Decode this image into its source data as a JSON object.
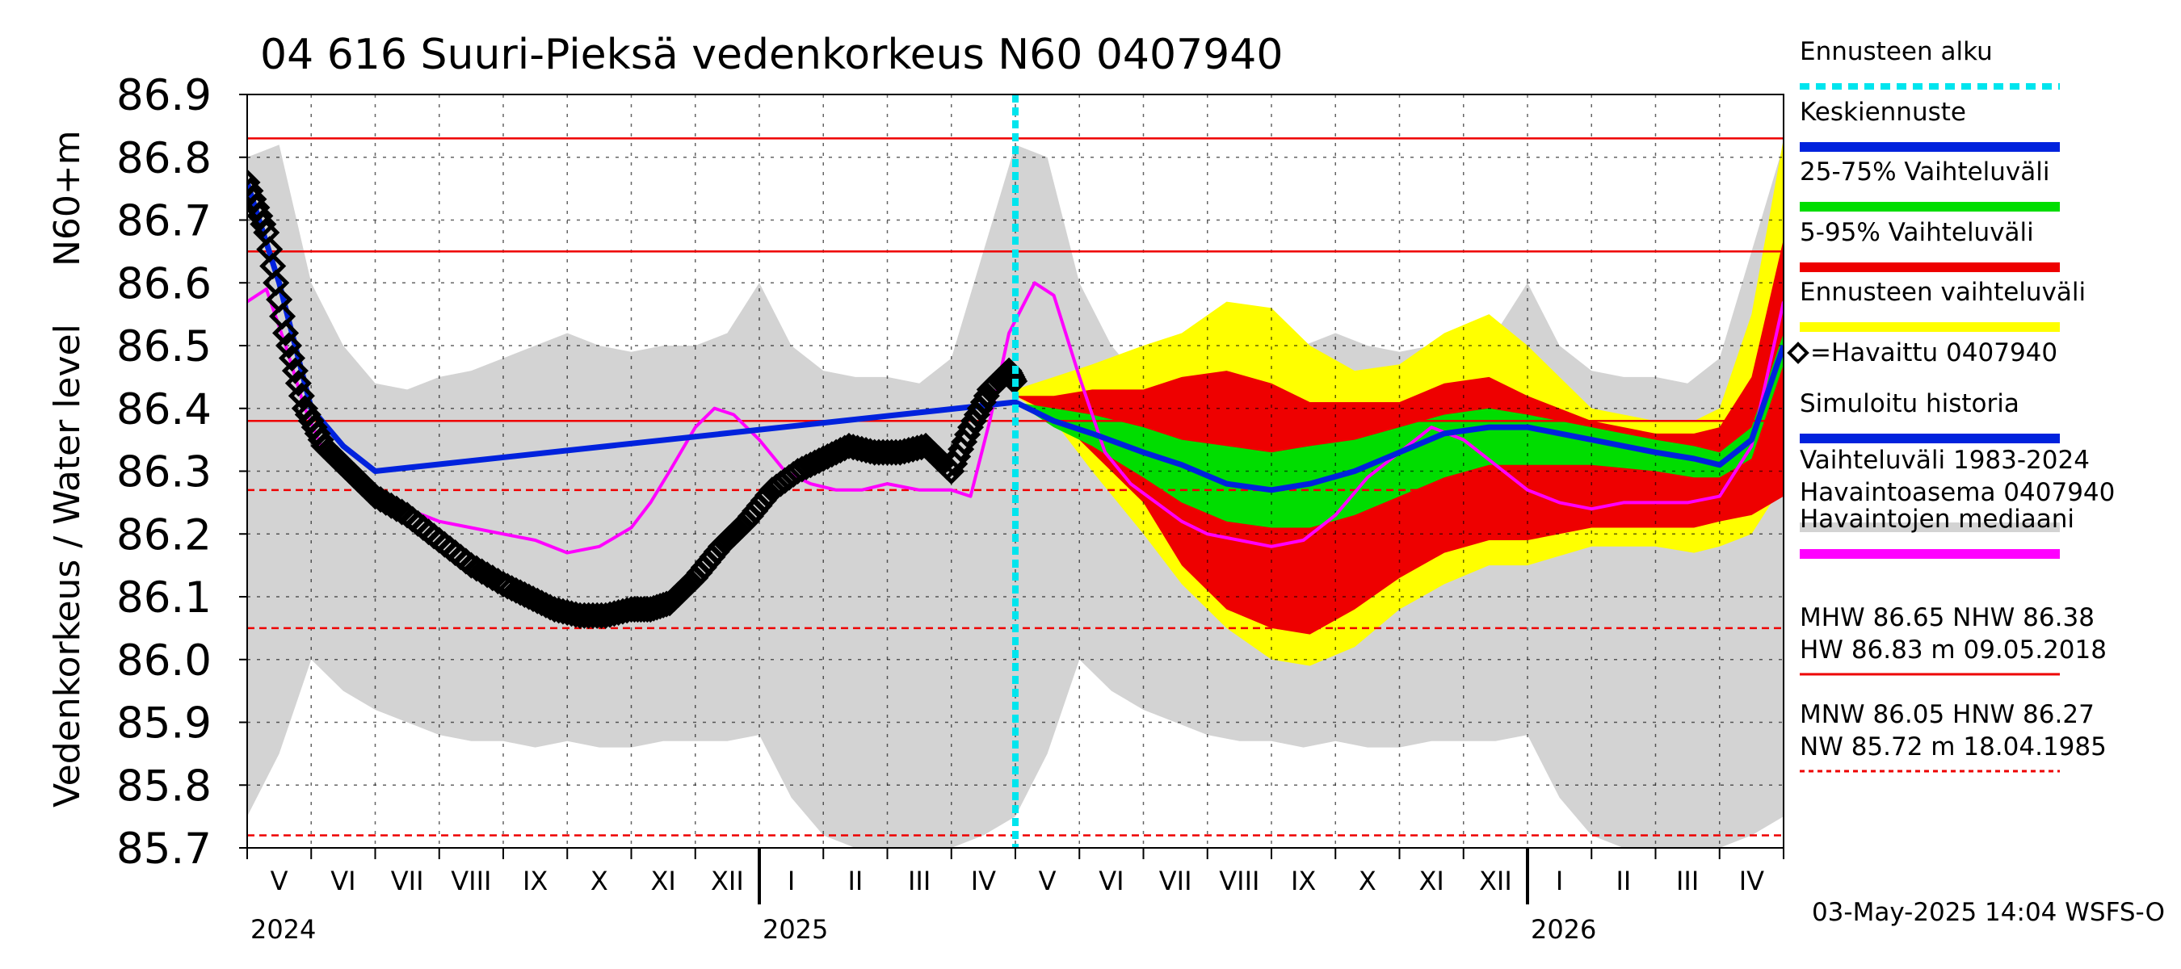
{
  "chart_data": {
    "type": "line",
    "title": "04 616 Suuri-Pieksä vedenkorkeus N60 0407940",
    "ylabel": "Vedenkorkeus / Water level",
    "ylabel_unit": "N60+m",
    "ylim": [
      85.7,
      86.9
    ],
    "y_ticks": [
      "86.9",
      "86.8",
      "86.7",
      "86.6",
      "86.5",
      "86.4",
      "86.3",
      "86.2",
      "86.1",
      "86.0",
      "85.9",
      "85.8",
      "85.7"
    ],
    "x_months": [
      "V",
      "VI",
      "VII",
      "VIII",
      "IX",
      "X",
      "XI",
      "XII",
      "I",
      "II",
      "III",
      "IV",
      "V",
      "VI",
      "VII",
      "VIII",
      "IX",
      "X",
      "XI",
      "XII",
      "I",
      "II",
      "III",
      "IV"
    ],
    "x_years": [
      "2024",
      "2025",
      "2026"
    ],
    "forecast_start_month_index": 12,
    "reference_lines": [
      {
        "name": "HW",
        "value": 86.83,
        "style": "solid"
      },
      {
        "name": "MHW",
        "value": 86.65,
        "style": "solid"
      },
      {
        "name": "NHW",
        "value": 86.38,
        "style": "solid"
      },
      {
        "name": "HNW",
        "value": 86.27,
        "style": "dashed"
      },
      {
        "name": "MNW",
        "value": 86.05,
        "style": "dashed"
      },
      {
        "name": "NW",
        "value": 85.72,
        "style": "dashed"
      }
    ],
    "series": [
      {
        "name": "Havaittu 0407940",
        "x": [
          0,
          0.3,
          0.6,
          0.9,
          1.2,
          1.6,
          2,
          2.5,
          3,
          3.5,
          4,
          4.4,
          4.8,
          5.2,
          5.6,
          6,
          6.3,
          6.6,
          7,
          7.4,
          7.8,
          8.2,
          8.6,
          9,
          9.4,
          9.8,
          10.2,
          10.6,
          11,
          11.3,
          11.6,
          11.9,
          12
        ],
        "values": [
          86.76,
          86.68,
          86.52,
          86.4,
          86.34,
          86.3,
          86.26,
          86.23,
          86.19,
          86.15,
          86.12,
          86.1,
          86.08,
          86.07,
          86.07,
          86.08,
          86.08,
          86.09,
          86.13,
          86.18,
          86.22,
          86.27,
          86.3,
          86.32,
          86.34,
          86.33,
          86.33,
          86.34,
          86.3,
          86.37,
          86.43,
          86.46,
          86.44
        ]
      },
      {
        "name": "Havaintojen mediaani",
        "x": [
          0,
          0.3,
          0.6,
          0.9,
          1.2,
          1.6,
          2,
          2.5,
          3,
          3.5,
          4,
          4.5,
          5,
          5.5,
          6,
          6.3,
          6.6,
          7,
          7.3,
          7.6,
          8,
          8.4,
          8.8,
          9.2,
          9.6,
          10,
          10.5,
          11,
          11.3,
          11.6,
          11.9,
          12.3,
          12.6,
          13,
          13.4,
          13.8,
          14.2,
          14.6,
          15,
          15.5,
          16,
          16.5,
          17,
          17.5,
          18,
          18.5,
          19,
          19.5,
          20,
          20.5,
          21,
          21.5,
          22,
          22.5,
          23,
          23.5,
          24
        ],
        "values": [
          86.57,
          86.59,
          86.5,
          86.4,
          86.33,
          86.3,
          86.27,
          86.24,
          86.22,
          86.21,
          86.2,
          86.19,
          86.17,
          86.18,
          86.21,
          86.25,
          86.3,
          86.37,
          86.4,
          86.39,
          86.35,
          86.3,
          86.28,
          86.27,
          86.27,
          86.28,
          86.27,
          86.27,
          86.26,
          86.38,
          86.52,
          86.6,
          86.58,
          86.45,
          86.33,
          86.28,
          86.25,
          86.22,
          86.2,
          86.19,
          86.18,
          86.19,
          86.23,
          86.29,
          86.33,
          86.37,
          86.35,
          86.31,
          86.27,
          86.25,
          86.24,
          86.25,
          86.25,
          86.25,
          86.26,
          86.34,
          86.57
        ]
      },
      {
        "name": "Keskiennuste",
        "x": [
          0,
          0.5,
          1,
          1.5,
          2,
          12,
          12.6,
          13.2,
          14,
          14.6,
          15.3,
          16,
          16.6,
          17.3,
          18,
          18.7,
          19.4,
          20,
          21,
          22,
          22.6,
          23,
          23.5,
          24
        ],
        "values": [
          86.76,
          86.6,
          86.4,
          86.34,
          86.3,
          86.41,
          86.38,
          86.36,
          86.33,
          86.31,
          86.28,
          86.27,
          86.28,
          86.3,
          86.33,
          86.36,
          86.37,
          86.37,
          86.35,
          86.33,
          86.32,
          86.31,
          86.35,
          86.5
        ]
      }
    ],
    "bands": [
      {
        "name": "Vaihteluväli 1983-2024 Havaintoasema 0407940",
        "x": [
          0,
          0.5,
          1,
          1.5,
          2,
          2.5,
          3,
          3.5,
          4,
          4.5,
          5,
          5.5,
          6,
          6.5,
          7,
          7.5,
          8,
          8.5,
          9,
          9.5,
          10,
          10.5,
          11,
          11.5,
          12,
          12.5,
          13,
          13.5,
          14,
          14.5,
          15,
          15.5,
          16,
          16.5,
          17,
          17.5,
          18,
          18.5,
          19,
          19.5,
          20,
          20.5,
          21,
          21.5,
          22,
          22.5,
          23,
          23.5,
          24
        ],
        "upper": [
          86.8,
          86.82,
          86.6,
          86.5,
          86.44,
          86.43,
          86.45,
          86.46,
          86.48,
          86.5,
          86.52,
          86.5,
          86.49,
          86.5,
          86.5,
          86.52,
          86.6,
          86.5,
          86.46,
          86.45,
          86.45,
          86.44,
          86.48,
          86.65,
          86.82,
          86.8,
          86.6,
          86.5,
          86.44,
          86.43,
          86.45,
          86.46,
          86.48,
          86.5,
          86.52,
          86.5,
          86.49,
          86.5,
          86.5,
          86.52,
          86.6,
          86.5,
          86.46,
          86.45,
          86.45,
          86.44,
          86.48,
          86.65,
          86.82
        ],
        "lower": [
          85.75,
          85.85,
          86.0,
          85.95,
          85.92,
          85.9,
          85.88,
          85.87,
          85.87,
          85.86,
          85.87,
          85.86,
          85.86,
          85.87,
          85.87,
          85.87,
          85.88,
          85.78,
          85.72,
          85.7,
          85.7,
          85.7,
          85.7,
          85.72,
          85.75,
          85.85,
          86.0,
          85.95,
          85.92,
          85.9,
          85.88,
          85.87,
          85.87,
          85.86,
          85.87,
          85.86,
          85.86,
          85.87,
          85.87,
          85.87,
          85.88,
          85.78,
          85.72,
          85.7,
          85.7,
          85.7,
          85.7,
          85.72,
          85.75
        ]
      },
      {
        "name": "Ennusteen vaihteluväli",
        "x": [
          12,
          12.6,
          13.2,
          14,
          14.6,
          15.3,
          16,
          16.6,
          17.3,
          18,
          18.7,
          19.4,
          20,
          21,
          22,
          22.6,
          23,
          23.5,
          24
        ],
        "upper": [
          86.43,
          86.45,
          86.47,
          86.5,
          86.52,
          86.57,
          86.56,
          86.5,
          86.46,
          86.47,
          86.52,
          86.55,
          86.5,
          86.4,
          86.38,
          86.38,
          86.4,
          86.55,
          86.83
        ],
        "lower": [
          86.42,
          86.38,
          86.3,
          86.2,
          86.12,
          86.05,
          86.0,
          85.99,
          86.02,
          86.08,
          86.12,
          86.15,
          86.15,
          86.18,
          86.18,
          86.17,
          86.18,
          86.2,
          86.28
        ]
      },
      {
        "name": "5-95% Vaihteluväli",
        "x": [
          12,
          12.6,
          13.2,
          14,
          14.6,
          15.3,
          16,
          16.6,
          17.3,
          18,
          18.7,
          19.4,
          20,
          21,
          22,
          22.6,
          23,
          23.5,
          24
        ],
        "upper": [
          86.42,
          86.42,
          86.43,
          86.43,
          86.45,
          86.46,
          86.44,
          86.41,
          86.41,
          86.41,
          86.44,
          86.45,
          86.42,
          86.38,
          86.36,
          86.36,
          86.37,
          86.45,
          86.67
        ],
        "lower": [
          86.42,
          86.39,
          86.33,
          86.25,
          86.15,
          86.08,
          86.05,
          86.04,
          86.08,
          86.13,
          86.17,
          86.19,
          86.19,
          86.21,
          86.21,
          86.21,
          86.22,
          86.23,
          86.26
        ]
      },
      {
        "name": "25-75% Vaihteluväli",
        "x": [
          12,
          12.6,
          13.2,
          14,
          14.6,
          15.3,
          16,
          16.6,
          17.3,
          18,
          18.7,
          19.4,
          20,
          21,
          22,
          22.6,
          23,
          23.5,
          24
        ],
        "upper": [
          86.41,
          86.4,
          86.39,
          86.37,
          86.35,
          86.34,
          86.33,
          86.34,
          86.35,
          86.37,
          86.39,
          86.4,
          86.39,
          86.37,
          86.35,
          86.34,
          86.33,
          86.37,
          86.52
        ],
        "lower": [
          86.41,
          86.37,
          86.34,
          86.29,
          86.25,
          86.22,
          86.21,
          86.21,
          86.23,
          86.26,
          86.29,
          86.31,
          86.31,
          86.31,
          86.3,
          86.29,
          86.29,
          86.32,
          86.47
        ]
      }
    ],
    "legend": {
      "placement": "right",
      "entries": [
        {
          "label": "Ennusteen alku",
          "color": "#00e5ee",
          "style": "dashed"
        },
        {
          "label": "Keskiennuste",
          "color": "#0022dd",
          "style": "solid"
        },
        {
          "label": "25-75% Vaihteluväli",
          "color": "#00dd00",
          "style": "solid"
        },
        {
          "label": "5-95% Vaihteluväli",
          "color": "#ee0000",
          "style": "solid"
        },
        {
          "label": "Ennusteen vaihteluväli",
          "color": "#ffff00",
          "style": "solid"
        },
        {
          "label": "=Havaittu 0407940",
          "color": "#000000",
          "style": "marker"
        },
        {
          "label": "Simuloitu historia",
          "color": "#0022dd",
          "style": "solid"
        },
        {
          "label": "Vaihteluväli 1983-2024",
          "label2": " Havaintoasema 0407940",
          "color": "#d3d3d3",
          "style": "solid"
        },
        {
          "label": "Havaintojen mediaani",
          "color": "#ff00ff",
          "style": "solid"
        }
      ],
      "stats": [
        {
          "line1": "MHW  86.65 NHW  86.38",
          "line2": "HW  86.83 m 09.05.2018",
          "color": "#ee0000",
          "style": "solid"
        },
        {
          "line1": "MNW  86.05 HNW  86.27",
          "line2": "NW  85.72 m 18.04.1985",
          "color": "#ee0000",
          "style": "dashed"
        }
      ]
    },
    "footer": "03-May-2025 14:04 WSFS-O"
  },
  "colors": {
    "history_band": "#d3d3d3",
    "forecast_range": "#ffff00",
    "p5_95": "#ee0000",
    "p25_75": "#00dd00",
    "mean_forecast": "#0022dd",
    "median": "#ff00ff",
    "observed": "#000000",
    "ref_line": "#ee0000",
    "forecast_start": "#00e5ee"
  }
}
